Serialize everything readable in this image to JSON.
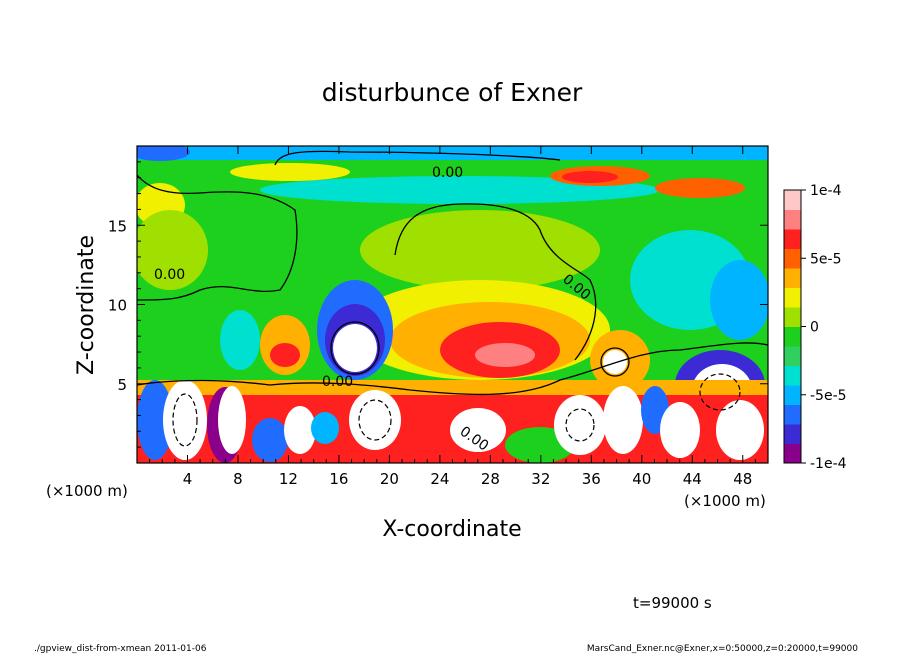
{
  "chart_data": {
    "type": "heatmap",
    "title": "disturbunce of Exner",
    "xlabel": "X-coordinate",
    "ylabel": "Z-coordinate",
    "x_unit_left": "(×1000 m)",
    "x_unit_right": "(×1000 m)",
    "xlim": [
      0,
      50000
    ],
    "ylim": [
      0,
      20000
    ],
    "x_ticks": [
      4,
      8,
      12,
      16,
      20,
      24,
      28,
      32,
      36,
      40,
      44,
      48
    ],
    "y_ticks": [
      5,
      10,
      15
    ],
    "colorbar": {
      "min": -0.0001,
      "max": 0.0001,
      "tick_labels": [
        "1e-4",
        "5e-5",
        "0",
        "-5e-5",
        "-1e-4"
      ],
      "tick_values": [
        0.0001,
        5e-05,
        0,
        -5e-05,
        -0.0001
      ]
    },
    "contour_labels": [
      "0.00",
      "0.00",
      "0.00",
      "0.00",
      "0.00"
    ],
    "colors": {
      "levels": [
        "#8b008b",
        "#3c2bd4",
        "#1f6cff",
        "#00b4ff",
        "#00e0d0",
        "#2fd060",
        "#1ed01e",
        "#a0e000",
        "#f0f000",
        "#ffb000",
        "#ff6000",
        "#ff2020",
        "#ff8080",
        "#ffc8c8"
      ]
    }
  },
  "time_label": "t=99000 s",
  "footer_left": "./gpview_dist-from-xmean  2011-01-06",
  "footer_right": "MarsCand_Exner.nc@Exner,x=0:50000,z=0:20000,t=99000"
}
